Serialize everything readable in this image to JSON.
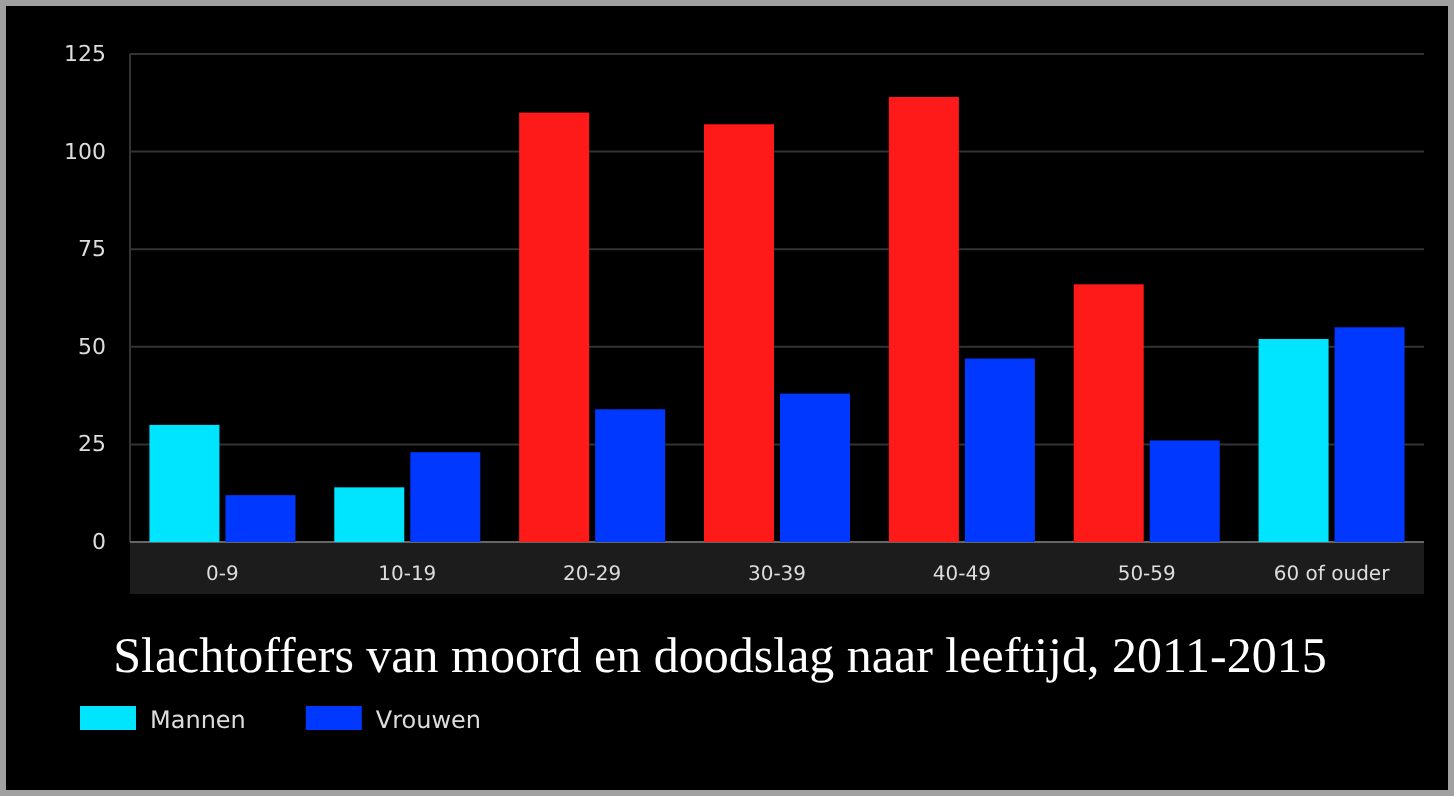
{
  "chart_data": {
    "type": "bar",
    "title": "Slachtoffers van moord en doodslag naar leeftijd, 2011-2015",
    "categories": [
      "0-9",
      "10-19",
      "20-29",
      "30-39",
      "40-49",
      "50-59",
      "60 of ouder"
    ],
    "series": [
      {
        "name": "Mannen",
        "color": "#00e5ff",
        "colors": [
          "#00e5ff",
          "#00e5ff",
          "#ff1a1a",
          "#ff1a1a",
          "#ff1a1a",
          "#ff1a1a",
          "#00e5ff"
        ],
        "values": [
          30,
          14,
          110,
          107,
          114,
          66,
          52
        ]
      },
      {
        "name": "Vrouwen",
        "color": "#0038ff",
        "values": [
          12,
          23,
          34,
          38,
          47,
          26,
          55
        ]
      }
    ],
    "ylim": [
      0,
      125
    ],
    "yticks": [
      0,
      25,
      50,
      75,
      100,
      125
    ],
    "grid": "y",
    "legend": "bottom left"
  }
}
